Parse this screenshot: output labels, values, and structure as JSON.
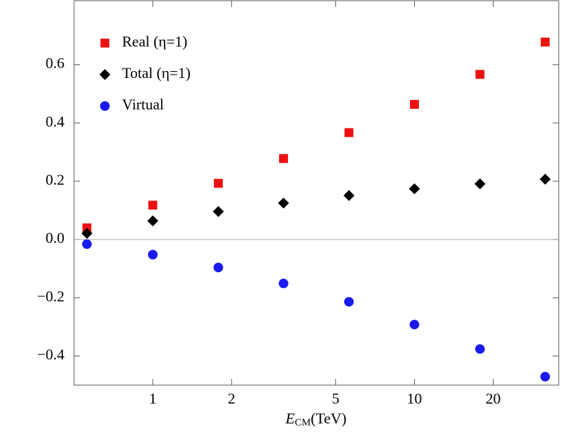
{
  "chart_data": {
    "type": "scatter",
    "xlabel": {
      "symbol": "E",
      "subscript": "CM",
      "unit": "(TeV)"
    },
    "log_x": true,
    "xlim": [
      0.5,
      35.6
    ],
    "ylim": [
      -0.5,
      0.82
    ],
    "xticks": [
      1,
      2,
      5,
      10,
      20
    ],
    "yticks": [
      {
        "value": -0.4,
        "label": "−0.4"
      },
      {
        "value": -0.2,
        "label": "−0.2"
      },
      {
        "value": 0.0,
        "label": "0.0"
      },
      0.2,
      0.4,
      0.6
    ],
    "zero_line": true,
    "legend": "top-left",
    "x": [
      0.56,
      1,
      1.78,
      3.16,
      5.62,
      10,
      17.8,
      31.6
    ],
    "series": [
      {
        "name": "Real (η=1)",
        "color": "#ee1111",
        "marker": "square",
        "values": [
          0.04,
          0.118,
          0.193,
          0.278,
          0.367,
          0.464,
          0.567,
          0.678
        ]
      },
      {
        "name": "Total (η=1)",
        "color": "#000000",
        "marker": "diamond",
        "values": [
          0.021,
          0.064,
          0.096,
          0.125,
          0.151,
          0.174,
          0.191,
          0.207
        ]
      },
      {
        "name": "Virtual",
        "color": "#1a1aee",
        "marker": "circle",
        "values": [
          -0.016,
          -0.052,
          -0.096,
          -0.151,
          -0.214,
          -0.292,
          -0.376,
          -0.471
        ]
      }
    ]
  }
}
